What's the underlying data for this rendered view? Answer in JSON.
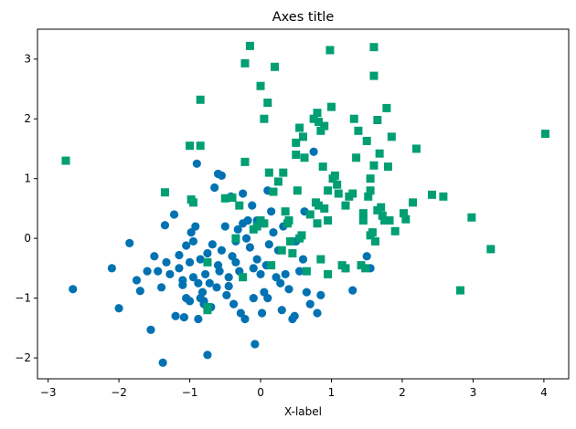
{
  "chart_data": {
    "type": "scatter",
    "title": "Axes title",
    "xlabel": "X-label",
    "ylabel": "",
    "xlim": [
      -3.15,
      4.35
    ],
    "ylim": [
      -2.35,
      3.5
    ],
    "xticks": [
      -3,
      -2,
      -1,
      0,
      1,
      2,
      3,
      4
    ],
    "yticks": [
      -2,
      -1,
      0,
      1,
      2,
      3
    ],
    "grid": false,
    "legend": null,
    "series": [
      {
        "marker": "circle",
        "color": "#0072B2",
        "points": [
          [
            -2.65,
            -0.85
          ],
          [
            -2.1,
            -0.5
          ],
          [
            -2.0,
            -1.17
          ],
          [
            -1.85,
            -0.08
          ],
          [
            -1.75,
            -0.7
          ],
          [
            -1.7,
            -0.88
          ],
          [
            -1.6,
            -0.55
          ],
          [
            -1.55,
            -1.53
          ],
          [
            -1.5,
            -0.3
          ],
          [
            -1.45,
            -0.55
          ],
          [
            -1.4,
            -0.82
          ],
          [
            -1.38,
            -2.08
          ],
          [
            -1.35,
            0.22
          ],
          [
            -1.33,
            -0.4
          ],
          [
            -1.28,
            -0.6
          ],
          [
            -1.22,
            0.4
          ],
          [
            -1.2,
            -1.3
          ],
          [
            -1.15,
            -0.28
          ],
          [
            -1.15,
            -0.5
          ],
          [
            -1.1,
            -0.7
          ],
          [
            -1.1,
            -0.78
          ],
          [
            -1.08,
            -1.32
          ],
          [
            -1.05,
            -0.12
          ],
          [
            -1.05,
            -1.0
          ],
          [
            -1.0,
            -0.4
          ],
          [
            -1.0,
            -1.05
          ],
          [
            -0.98,
            0.1
          ],
          [
            -0.95,
            -0.05
          ],
          [
            -0.95,
            -0.65
          ],
          [
            -0.92,
            0.2
          ],
          [
            -0.9,
            1.25
          ],
          [
            -0.88,
            -1.35
          ],
          [
            -0.88,
            -0.75
          ],
          [
            -0.85,
            -0.35
          ],
          [
            -0.85,
            -1.0
          ],
          [
            -0.82,
            -0.9
          ],
          [
            -0.8,
            -1.05
          ],
          [
            -0.8,
            -1.1
          ],
          [
            -0.78,
            -0.6
          ],
          [
            -0.75,
            -1.95
          ],
          [
            -0.75,
            -0.25
          ],
          [
            -0.72,
            -0.75
          ],
          [
            -0.7,
            -1.15
          ],
          [
            -0.68,
            -0.1
          ],
          [
            -0.65,
            0.85
          ],
          [
            -0.62,
            -0.82
          ],
          [
            -0.6,
            1.08
          ],
          [
            -0.6,
            -0.45
          ],
          [
            -0.58,
            -0.55
          ],
          [
            -0.55,
            1.05
          ],
          [
            -0.55,
            -0.2
          ],
          [
            -0.5,
            0.2
          ],
          [
            -0.48,
            -0.95
          ],
          [
            -0.45,
            -0.65
          ],
          [
            -0.45,
            -0.8
          ],
          [
            -0.42,
            0.7
          ],
          [
            -0.4,
            -0.3
          ],
          [
            -0.38,
            -1.1
          ],
          [
            -0.35,
            -0.05
          ],
          [
            -0.35,
            -0.4
          ],
          [
            -0.32,
            0.15
          ],
          [
            -0.3,
            -0.55
          ],
          [
            -0.28,
            -1.25
          ],
          [
            -0.25,
            0.25
          ],
          [
            -0.25,
            0.75
          ],
          [
            -0.22,
            -1.35
          ],
          [
            -0.2,
            0.0
          ],
          [
            -0.18,
            0.3
          ],
          [
            -0.15,
            -0.15
          ],
          [
            -0.12,
            0.55
          ],
          [
            -0.1,
            -0.5
          ],
          [
            -0.1,
            -1.0
          ],
          [
            -0.08,
            -1.77
          ],
          [
            -0.05,
            0.3
          ],
          [
            -0.05,
            -0.35
          ],
          [
            0.0,
            -0.6
          ],
          [
            0.02,
            -1.25
          ],
          [
            0.05,
            -0.9
          ],
          [
            0.05,
            0.25
          ],
          [
            0.08,
            -0.45
          ],
          [
            0.1,
            -1.0
          ],
          [
            0.1,
            0.8
          ],
          [
            0.12,
            -0.1
          ],
          [
            0.15,
            0.45
          ],
          [
            0.18,
            0.1
          ],
          [
            0.22,
            -0.65
          ],
          [
            0.25,
            -0.2
          ],
          [
            0.28,
            -0.75
          ],
          [
            0.3,
            -1.2
          ],
          [
            0.32,
            0.2
          ],
          [
            0.35,
            -0.6
          ],
          [
            0.4,
            -0.85
          ],
          [
            0.45,
            -1.35
          ],
          [
            0.48,
            -1.3
          ],
          [
            0.5,
            -0.05
          ],
          [
            0.55,
            -0.55
          ],
          [
            0.6,
            -0.35
          ],
          [
            0.62,
            0.45
          ],
          [
            0.65,
            -0.9
          ],
          [
            0.7,
            -1.1
          ],
          [
            0.75,
            1.45
          ],
          [
            0.8,
            -1.25
          ],
          [
            0.85,
            -0.95
          ],
          [
            1.2,
            -0.5
          ],
          [
            1.3,
            -0.87
          ],
          [
            1.5,
            -0.3
          ],
          [
            1.55,
            -0.5
          ]
        ]
      },
      {
        "marker": "square",
        "color": "#009E73",
        "points": [
          [
            -2.75,
            1.3
          ],
          [
            -1.35,
            0.77
          ],
          [
            -1.0,
            1.55
          ],
          [
            -0.98,
            0.65
          ],
          [
            -0.95,
            0.6
          ],
          [
            -0.85,
            1.55
          ],
          [
            -0.85,
            2.32
          ],
          [
            -0.75,
            -1.2
          ],
          [
            -0.75,
            -1.15
          ],
          [
            -0.75,
            -0.4
          ],
          [
            -0.5,
            0.67
          ],
          [
            -0.4,
            0.68
          ],
          [
            -0.35,
            0.0
          ],
          [
            -0.3,
            0.55
          ],
          [
            -0.25,
            -0.65
          ],
          [
            -0.22,
            1.28
          ],
          [
            -0.22,
            2.93
          ],
          [
            -0.15,
            3.22
          ],
          [
            -0.1,
            0.15
          ],
          [
            -0.05,
            0.2
          ],
          [
            0.0,
            0.3
          ],
          [
            0.0,
            2.55
          ],
          [
            0.05,
            2.0
          ],
          [
            0.05,
            0.25
          ],
          [
            0.1,
            2.27
          ],
          [
            0.12,
            1.1
          ],
          [
            0.15,
            -0.45
          ],
          [
            0.18,
            0.78
          ],
          [
            0.2,
            2.87
          ],
          [
            0.25,
            0.95
          ],
          [
            0.3,
            -0.2
          ],
          [
            0.32,
            1.1
          ],
          [
            0.35,
            0.45
          ],
          [
            0.38,
            0.25
          ],
          [
            0.4,
            0.3
          ],
          [
            0.42,
            -0.05
          ],
          [
            0.45,
            -0.25
          ],
          [
            0.5,
            1.6
          ],
          [
            0.5,
            1.4
          ],
          [
            0.52,
            0.8
          ],
          [
            0.55,
            1.85
          ],
          [
            0.55,
            0.0
          ],
          [
            0.58,
            0.05
          ],
          [
            0.6,
            1.7
          ],
          [
            0.62,
            1.35
          ],
          [
            0.65,
            -0.55
          ],
          [
            0.7,
            0.4
          ],
          [
            0.75,
            2.0
          ],
          [
            0.78,
            0.6
          ],
          [
            0.8,
            2.1
          ],
          [
            0.8,
            0.25
          ],
          [
            0.82,
            1.95
          ],
          [
            0.82,
            0.55
          ],
          [
            0.85,
            1.8
          ],
          [
            0.85,
            -0.35
          ],
          [
            0.88,
            1.2
          ],
          [
            0.9,
            1.88
          ],
          [
            0.9,
            0.5
          ],
          [
            0.95,
            -0.6
          ],
          [
            0.95,
            0.3
          ],
          [
            0.95,
            0.8
          ],
          [
            0.98,
            3.15
          ],
          [
            1.0,
            2.2
          ],
          [
            1.02,
            1.0
          ],
          [
            1.05,
            1.05
          ],
          [
            1.08,
            0.9
          ],
          [
            1.1,
            0.75
          ],
          [
            1.15,
            -0.45
          ],
          [
            1.2,
            0.55
          ],
          [
            1.2,
            -0.5
          ],
          [
            1.25,
            0.7
          ],
          [
            1.3,
            0.75
          ],
          [
            1.32,
            2.0
          ],
          [
            1.35,
            1.35
          ],
          [
            1.38,
            1.8
          ],
          [
            1.42,
            -0.45
          ],
          [
            1.45,
            0.3
          ],
          [
            1.45,
            0.42
          ],
          [
            1.48,
            -0.5
          ],
          [
            1.5,
            1.63
          ],
          [
            1.52,
            0.7
          ],
          [
            1.55,
            0.8
          ],
          [
            1.55,
            1.0
          ],
          [
            1.55,
            0.05
          ],
          [
            1.58,
            0.1
          ],
          [
            1.6,
            3.2
          ],
          [
            1.6,
            2.72
          ],
          [
            1.6,
            1.22
          ],
          [
            1.62,
            -0.05
          ],
          [
            1.65,
            1.98
          ],
          [
            1.65,
            0.47
          ],
          [
            1.68,
            1.42
          ],
          [
            1.7,
            0.52
          ],
          [
            1.72,
            0.38
          ],
          [
            1.75,
            0.3
          ],
          [
            1.78,
            2.18
          ],
          [
            1.8,
            1.2
          ],
          [
            1.82,
            0.3
          ],
          [
            1.85,
            1.7
          ],
          [
            1.9,
            0.12
          ],
          [
            2.02,
            0.42
          ],
          [
            2.05,
            0.32
          ],
          [
            2.15,
            0.6
          ],
          [
            2.2,
            1.5
          ],
          [
            2.42,
            0.73
          ],
          [
            2.58,
            0.7
          ],
          [
            2.82,
            -0.87
          ],
          [
            2.98,
            0.35
          ],
          [
            3.25,
            -0.18
          ],
          [
            4.02,
            1.75
          ]
        ]
      }
    ]
  }
}
